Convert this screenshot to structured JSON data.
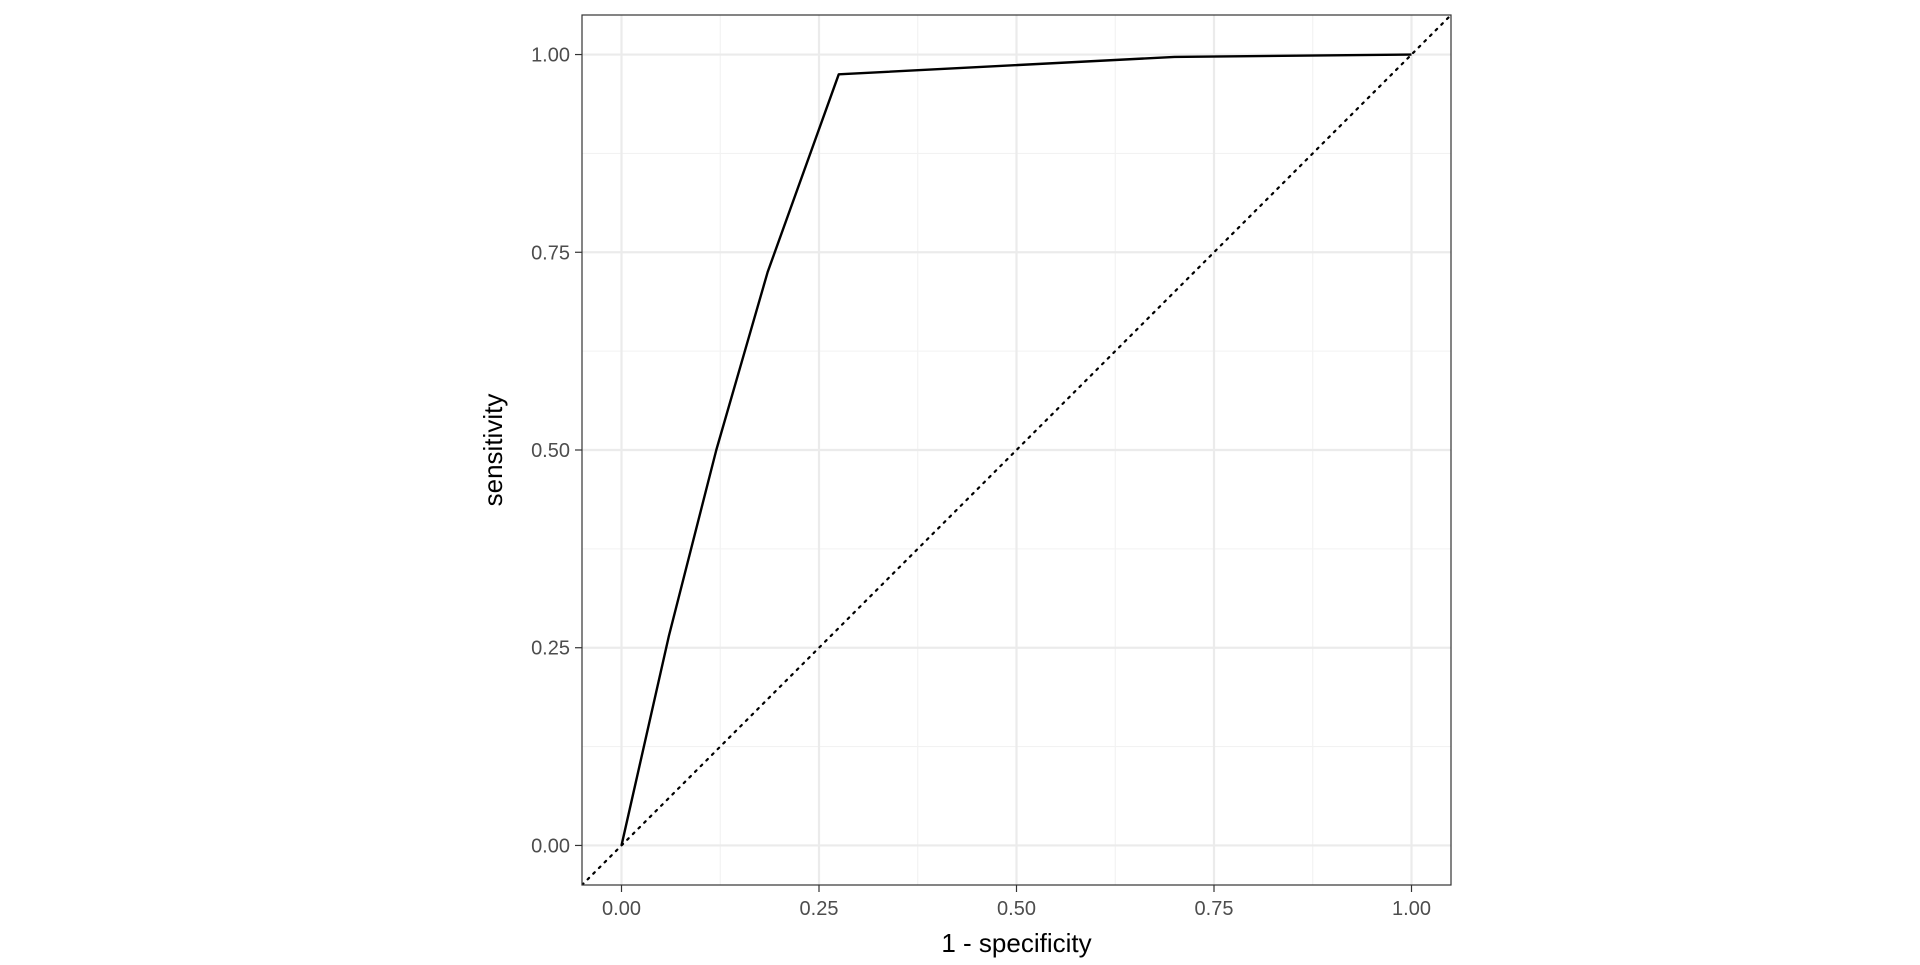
{
  "chart_data": {
    "type": "line",
    "title": "",
    "xlabel": "1 - specificity",
    "ylabel": "sensitivity",
    "xlim": [
      -0.05,
      1.05
    ],
    "ylim": [
      -0.05,
      1.05
    ],
    "x_ticks": [
      0,
      0.25,
      0.5,
      0.75,
      1
    ],
    "y_ticks": [
      0,
      0.25,
      0.5,
      0.75,
      1
    ],
    "x_tick_labels": [
      "0.00",
      "0.25",
      "0.50",
      "0.75",
      "1.00"
    ],
    "y_tick_labels": [
      "0.00",
      "0.25",
      "0.50",
      "0.75",
      "1.00"
    ],
    "grid": true,
    "series": [
      {
        "name": "",
        "style": "solid",
        "color": "#000000",
        "x": [
          0,
          0.06,
          0.12,
          0.185,
          0.275,
          0.7,
          1.0
        ],
        "y": [
          0,
          0.265,
          0.5,
          0.725,
          0.975,
          0.997,
          1.0
        ]
      }
    ],
    "reference_line": {
      "style": "dotted",
      "color": "#000000",
      "slope": 1,
      "intercept": 0
    },
    "legend": "none"
  },
  "colors": {
    "panel_border": "#333333",
    "grid_major": "#ebebeb",
    "grid_minor": "#f2f2f2",
    "tick_text": "#4d4d4d",
    "line": "#000000"
  }
}
